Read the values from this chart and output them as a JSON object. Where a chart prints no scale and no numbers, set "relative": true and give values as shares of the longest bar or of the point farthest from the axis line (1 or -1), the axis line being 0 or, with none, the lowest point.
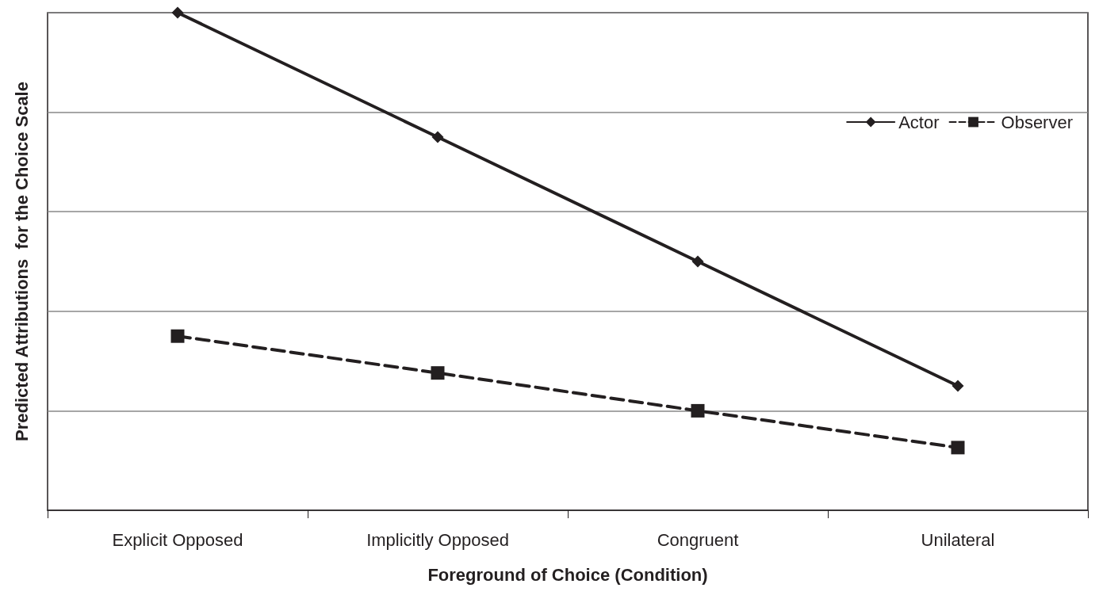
{
  "chart_data": {
    "type": "line",
    "xlabel": "Foreground of Choice (Condition)",
    "ylabel": "Predicted Attributions  for the Choice Scale",
    "categories": [
      "Explicit Opposed",
      "Implicitly Opposed",
      "Congruent",
      "Unilateral"
    ],
    "series": [
      {
        "name": "Actor",
        "color": "#231f20",
        "values": [
          1,
          0.75,
          0.5,
          0.25
        ],
        "marker": "diamond",
        "line_style": "solid"
      },
      {
        "name": "Observer",
        "color": "#231f20",
        "values": [
          0.35,
          0.276,
          0.2,
          0.126
        ],
        "marker": "square",
        "line_style": "dashed"
      }
    ],
    "relative": true,
    "grid": "y",
    "legend": "top right"
  }
}
